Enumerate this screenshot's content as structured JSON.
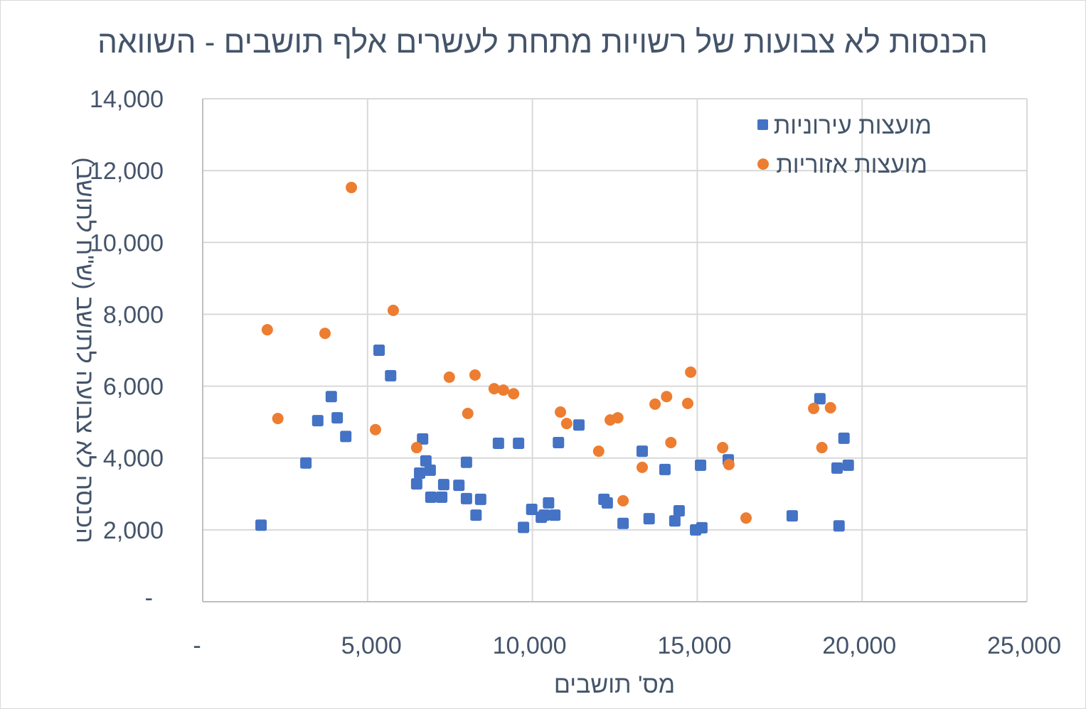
{
  "chart_data": {
    "type": "scatter",
    "title": "הכנסות לא צבועות של רשויות מתחת לעשרים אלף תושבים - השוואה",
    "xlabel": "מס' תושבים",
    "ylabel": "הכנסה לא צבועה לתושב (ש\"ח לתושב)",
    "xlim": [
      0,
      25000
    ],
    "ylim": [
      0,
      14000
    ],
    "x_ticks": [
      0,
      5000,
      10000,
      15000,
      20000,
      25000
    ],
    "x_tick_labels": [
      "-",
      "5,000",
      "10,000",
      "15,000",
      "20,000",
      "25,000"
    ],
    "y_ticks": [
      0,
      2000,
      4000,
      6000,
      8000,
      10000,
      12000,
      14000
    ],
    "y_tick_labels": [
      "-",
      "2,000",
      "4,000",
      "6,000",
      "8,000",
      "10,000",
      "12,000",
      "14,000"
    ],
    "grid": true,
    "legend_position": "top-right",
    "series": [
      {
        "name": "מועצות עירוניות",
        "marker": "square",
        "color": "#4472c4",
        "points": [
          [
            1770,
            2130
          ],
          [
            3130,
            3860
          ],
          [
            3490,
            5040
          ],
          [
            3900,
            5710
          ],
          [
            4080,
            5120
          ],
          [
            4340,
            4600
          ],
          [
            5350,
            7000
          ],
          [
            5700,
            6290
          ],
          [
            6490,
            3280
          ],
          [
            6580,
            3580
          ],
          [
            6670,
            4530
          ],
          [
            6770,
            3920
          ],
          [
            6900,
            3660
          ],
          [
            6920,
            2910
          ],
          [
            7250,
            2910
          ],
          [
            7310,
            3260
          ],
          [
            7770,
            3240
          ],
          [
            8000,
            3880
          ],
          [
            8000,
            2870
          ],
          [
            8290,
            2410
          ],
          [
            8430,
            2850
          ],
          [
            8970,
            4410
          ],
          [
            9580,
            4410
          ],
          [
            9730,
            2070
          ],
          [
            9980,
            2570
          ],
          [
            10270,
            2350
          ],
          [
            10360,
            2410
          ],
          [
            10490,
            2750
          ],
          [
            10680,
            2410
          ],
          [
            10790,
            4430
          ],
          [
            11410,
            4920
          ],
          [
            12170,
            2850
          ],
          [
            12270,
            2750
          ],
          [
            12750,
            2180
          ],
          [
            13330,
            4190
          ],
          [
            13540,
            2310
          ],
          [
            14020,
            3680
          ],
          [
            14320,
            2250
          ],
          [
            14450,
            2530
          ],
          [
            14950,
            2000
          ],
          [
            15140,
            2060
          ],
          [
            15100,
            3800
          ],
          [
            15940,
            3950
          ],
          [
            17880,
            2390
          ],
          [
            18720,
            5650
          ],
          [
            19240,
            3720
          ],
          [
            19300,
            2110
          ],
          [
            19450,
            4550
          ],
          [
            19580,
            3800
          ]
        ]
      },
      {
        "name": "מועצות אזוריות",
        "marker": "circle",
        "color": "#ed7d31",
        "points": [
          [
            1960,
            7570
          ],
          [
            2280,
            5100
          ],
          [
            3710,
            7470
          ],
          [
            4510,
            11530
          ],
          [
            5240,
            4790
          ],
          [
            5780,
            8110
          ],
          [
            6490,
            4290
          ],
          [
            7480,
            6250
          ],
          [
            8040,
            5240
          ],
          [
            8260,
            6310
          ],
          [
            8840,
            5930
          ],
          [
            9120,
            5890
          ],
          [
            9430,
            5790
          ],
          [
            10850,
            5280
          ],
          [
            11040,
            4960
          ],
          [
            12010,
            4190
          ],
          [
            12360,
            5060
          ],
          [
            12590,
            5120
          ],
          [
            12750,
            2810
          ],
          [
            13330,
            3740
          ],
          [
            13720,
            5500
          ],
          [
            14070,
            5710
          ],
          [
            14200,
            4430
          ],
          [
            14710,
            5520
          ],
          [
            14800,
            6390
          ],
          [
            15770,
            4290
          ],
          [
            15960,
            3820
          ],
          [
            16480,
            2330
          ],
          [
            18530,
            5380
          ],
          [
            18780,
            4290
          ],
          [
            19040,
            5400
          ]
        ]
      }
    ]
  },
  "colors": {
    "text": "#44546a",
    "grid": "#d9d9d9",
    "axis": "#bfbfbf",
    "series_blue": "#4472c4",
    "series_orange": "#ed7d31"
  }
}
